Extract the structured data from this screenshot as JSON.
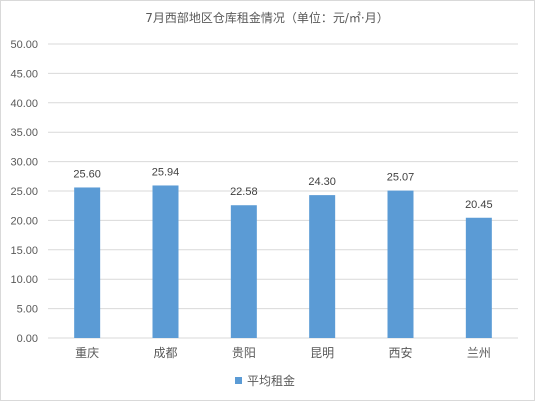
{
  "chart_data": {
    "type": "bar",
    "title": "7月西部地区仓库租金情况（单位：元/㎡·月）",
    "categories": [
      "重庆",
      "成都",
      "贵阳",
      "昆明",
      "西安",
      "兰州"
    ],
    "series": [
      {
        "name": "平均租金",
        "values": [
          25.6,
          25.94,
          22.58,
          24.3,
          25.07,
          20.45
        ]
      }
    ],
    "data_labels": [
      "25.60",
      "25.94",
      "22.58",
      "24.30",
      "25.07",
      "20.45"
    ],
    "y_ticks": [
      "0.00",
      "5.00",
      "10.00",
      "15.00",
      "20.00",
      "25.00",
      "30.00",
      "35.00",
      "40.00",
      "45.00",
      "50.00"
    ],
    "ylim": [
      0,
      50
    ],
    "grid": true,
    "legend_position": "bottom",
    "bar_color": "#5b9bd5",
    "grid_color": "#d9d9d9"
  }
}
